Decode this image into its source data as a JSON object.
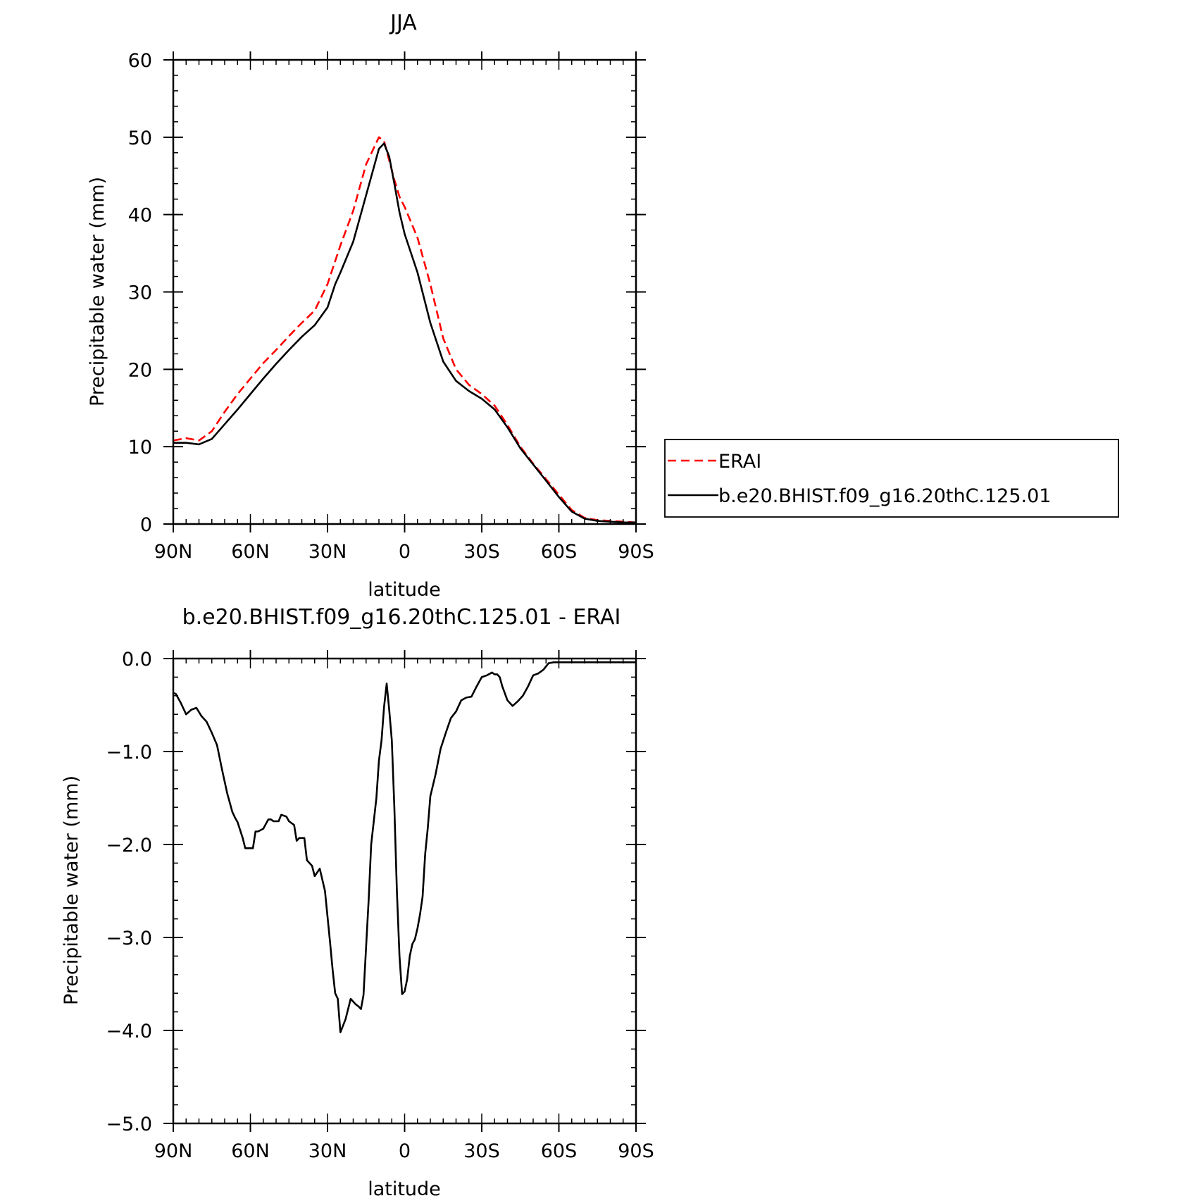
{
  "chart_data": [
    {
      "type": "line",
      "title": "JJA",
      "xlabel": "latitude",
      "ylabel": "Precipitable water (mm)",
      "xlim": [
        90,
        -90
      ],
      "ylim": [
        0,
        60
      ],
      "x_ticks": [
        {
          "value": 90,
          "label": "90N"
        },
        {
          "value": 60,
          "label": "60N"
        },
        {
          "value": 30,
          "label": "30N"
        },
        {
          "value": 0,
          "label": "0"
        },
        {
          "value": -30,
          "label": "30S"
        },
        {
          "value": -60,
          "label": "60S"
        },
        {
          "value": -90,
          "label": "90S"
        }
      ],
      "y_ticks": [
        {
          "value": 0,
          "label": "0"
        },
        {
          "value": 10,
          "label": "10"
        },
        {
          "value": 20,
          "label": "20"
        },
        {
          "value": 30,
          "label": "30"
        },
        {
          "value": 40,
          "label": "40"
        },
        {
          "value": 50,
          "label": "50"
        },
        {
          "value": 60,
          "label": "60"
        }
      ],
      "legend": "right",
      "series": [
        {
          "name": "ERAI",
          "color": "#ff0000",
          "dash": "dashed",
          "x": [
            90,
            85,
            80,
            75,
            70,
            65,
            60,
            55,
            50,
            45,
            40,
            35,
            30,
            27,
            25,
            20,
            15,
            10,
            8,
            6,
            4,
            2,
            0,
            -5,
            -10,
            -15,
            -20,
            -25,
            -30,
            -35,
            -40,
            -45,
            -50,
            -55,
            -60,
            -65,
            -70,
            -75,
            -80,
            -85,
            -90
          ],
          "y": [
            10.8,
            11.1,
            10.8,
            12.0,
            14.5,
            16.8,
            18.8,
            20.8,
            22.5,
            24.3,
            26.0,
            27.6,
            31.0,
            34.0,
            36.0,
            40.5,
            46.5,
            50.0,
            49.5,
            47.0,
            44.5,
            42.3,
            41.0,
            37.0,
            31.0,
            24.0,
            20.0,
            18.0,
            16.8,
            15.3,
            12.8,
            10.0,
            7.8,
            5.8,
            3.8,
            1.8,
            0.8,
            0.5,
            0.4,
            0.3,
            0.2
          ]
        },
        {
          "name": "b.e20.BHIST.f09_g16.20thC.125.01",
          "color": "#000000",
          "dash": "solid",
          "x": [
            90,
            85,
            80,
            75,
            70,
            65,
            60,
            55,
            50,
            45,
            40,
            35,
            30,
            27,
            25,
            20,
            15,
            10,
            8,
            6,
            4,
            2,
            0,
            -5,
            -10,
            -15,
            -20,
            -25,
            -30,
            -35,
            -40,
            -45,
            -50,
            -55,
            -60,
            -65,
            -70,
            -75,
            -80,
            -85,
            -90
          ],
          "y": [
            10.5,
            10.5,
            10.3,
            11.0,
            12.9,
            14.8,
            16.8,
            18.8,
            20.7,
            22.5,
            24.2,
            25.7,
            28.0,
            31.0,
            32.5,
            36.5,
            42.5,
            48.5,
            49.2,
            47.5,
            44.0,
            40.3,
            37.5,
            32.5,
            26.0,
            21.0,
            18.5,
            17.2,
            16.2,
            14.8,
            12.5,
            9.8,
            7.7,
            5.6,
            3.5,
            1.6,
            0.7,
            0.4,
            0.3,
            0.2,
            0.2
          ]
        }
      ]
    },
    {
      "type": "line",
      "title": "b.e20.BHIST.f09_g16.20thC.125.01 - ERAI",
      "xlabel": "latitude",
      "ylabel": "Precipitable water (mm)",
      "xlim": [
        90,
        -90
      ],
      "ylim": [
        -5,
        0
      ],
      "x_ticks": [
        {
          "value": 90,
          "label": "90N"
        },
        {
          "value": 60,
          "label": "60N"
        },
        {
          "value": 30,
          "label": "30N"
        },
        {
          "value": 0,
          "label": "0"
        },
        {
          "value": -30,
          "label": "30S"
        },
        {
          "value": -60,
          "label": "60S"
        },
        {
          "value": -90,
          "label": "90S"
        }
      ],
      "y_ticks": [
        {
          "value": 0,
          "label": "0.0"
        },
        {
          "value": -1,
          "label": "−1.0"
        },
        {
          "value": -2,
          "label": "−2.0"
        },
        {
          "value": -3,
          "label": "−3.0"
        },
        {
          "value": -4,
          "label": "−4.0"
        },
        {
          "value": -5,
          "label": "−5.0"
        }
      ],
      "series": [
        {
          "color": "#000000",
          "dash": "solid",
          "x": [
            90,
            89,
            87,
            85,
            83,
            81,
            79,
            77,
            75,
            73,
            71,
            69,
            67,
            66,
            65,
            63,
            62,
            61,
            59,
            58,
            57,
            55,
            53,
            52,
            51,
            50,
            49,
            48,
            46,
            45,
            43,
            42,
            41,
            39,
            38,
            36,
            35,
            33,
            31,
            29,
            28,
            27,
            26,
            25,
            23,
            21,
            20,
            19,
            18,
            17,
            16,
            15,
            14,
            13,
            11,
            10,
            9,
            8,
            7,
            6,
            5,
            4,
            3,
            2,
            1,
            0,
            -1,
            -2,
            -3,
            -4,
            -5,
            -6,
            -7,
            -8,
            -9,
            -10,
            -12,
            -14,
            -16,
            -18,
            -20,
            -22,
            -24,
            -26,
            -28,
            -30,
            -32,
            -34,
            -35,
            -36,
            -37,
            -38,
            -40,
            -42,
            -44,
            -46,
            -48,
            -50,
            -52,
            -54,
            -56,
            -58,
            -60,
            -62,
            -64,
            -66,
            -68,
            -70,
            -72,
            -74,
            -76,
            -78,
            -80,
            -82,
            -84,
            -86,
            -88,
            -90
          ],
          "y": [
            -0.37,
            -0.38,
            -0.48,
            -0.6,
            -0.55,
            -0.53,
            -0.62,
            -0.68,
            -0.8,
            -0.93,
            -1.2,
            -1.45,
            -1.65,
            -1.71,
            -1.76,
            -1.93,
            -2.04,
            -2.04,
            -2.04,
            -1.86,
            -1.86,
            -1.83,
            -1.73,
            -1.73,
            -1.75,
            -1.75,
            -1.75,
            -1.68,
            -1.7,
            -1.75,
            -1.79,
            -1.96,
            -1.93,
            -1.93,
            -2.17,
            -2.23,
            -2.34,
            -2.26,
            -2.5,
            -3.05,
            -3.35,
            -3.6,
            -3.66,
            -4.02,
            -3.88,
            -3.66,
            -3.69,
            -3.72,
            -3.74,
            -3.77,
            -3.62,
            -3.1,
            -2.6,
            -2.0,
            -1.5,
            -1.1,
            -0.88,
            -0.52,
            -0.27,
            -0.55,
            -0.88,
            -1.6,
            -2.5,
            -3.2,
            -3.61,
            -3.58,
            -3.45,
            -3.2,
            -3.07,
            -3.02,
            -2.9,
            -2.75,
            -2.56,
            -2.1,
            -1.82,
            -1.48,
            -1.25,
            -0.97,
            -0.8,
            -0.64,
            -0.57,
            -0.45,
            -0.42,
            -0.41,
            -0.3,
            -0.2,
            -0.18,
            -0.15,
            -0.17,
            -0.17,
            -0.2,
            -0.3,
            -0.45,
            -0.51,
            -0.46,
            -0.4,
            -0.3,
            -0.18,
            -0.16,
            -0.12,
            -0.05,
            -0.04,
            -0.04,
            -0.04,
            -0.04,
            -0.04,
            -0.04,
            -0.04,
            -0.04,
            -0.04,
            -0.04,
            -0.04,
            -0.04,
            -0.04,
            -0.04,
            -0.04,
            -0.04,
            -0.04
          ]
        }
      ]
    }
  ]
}
